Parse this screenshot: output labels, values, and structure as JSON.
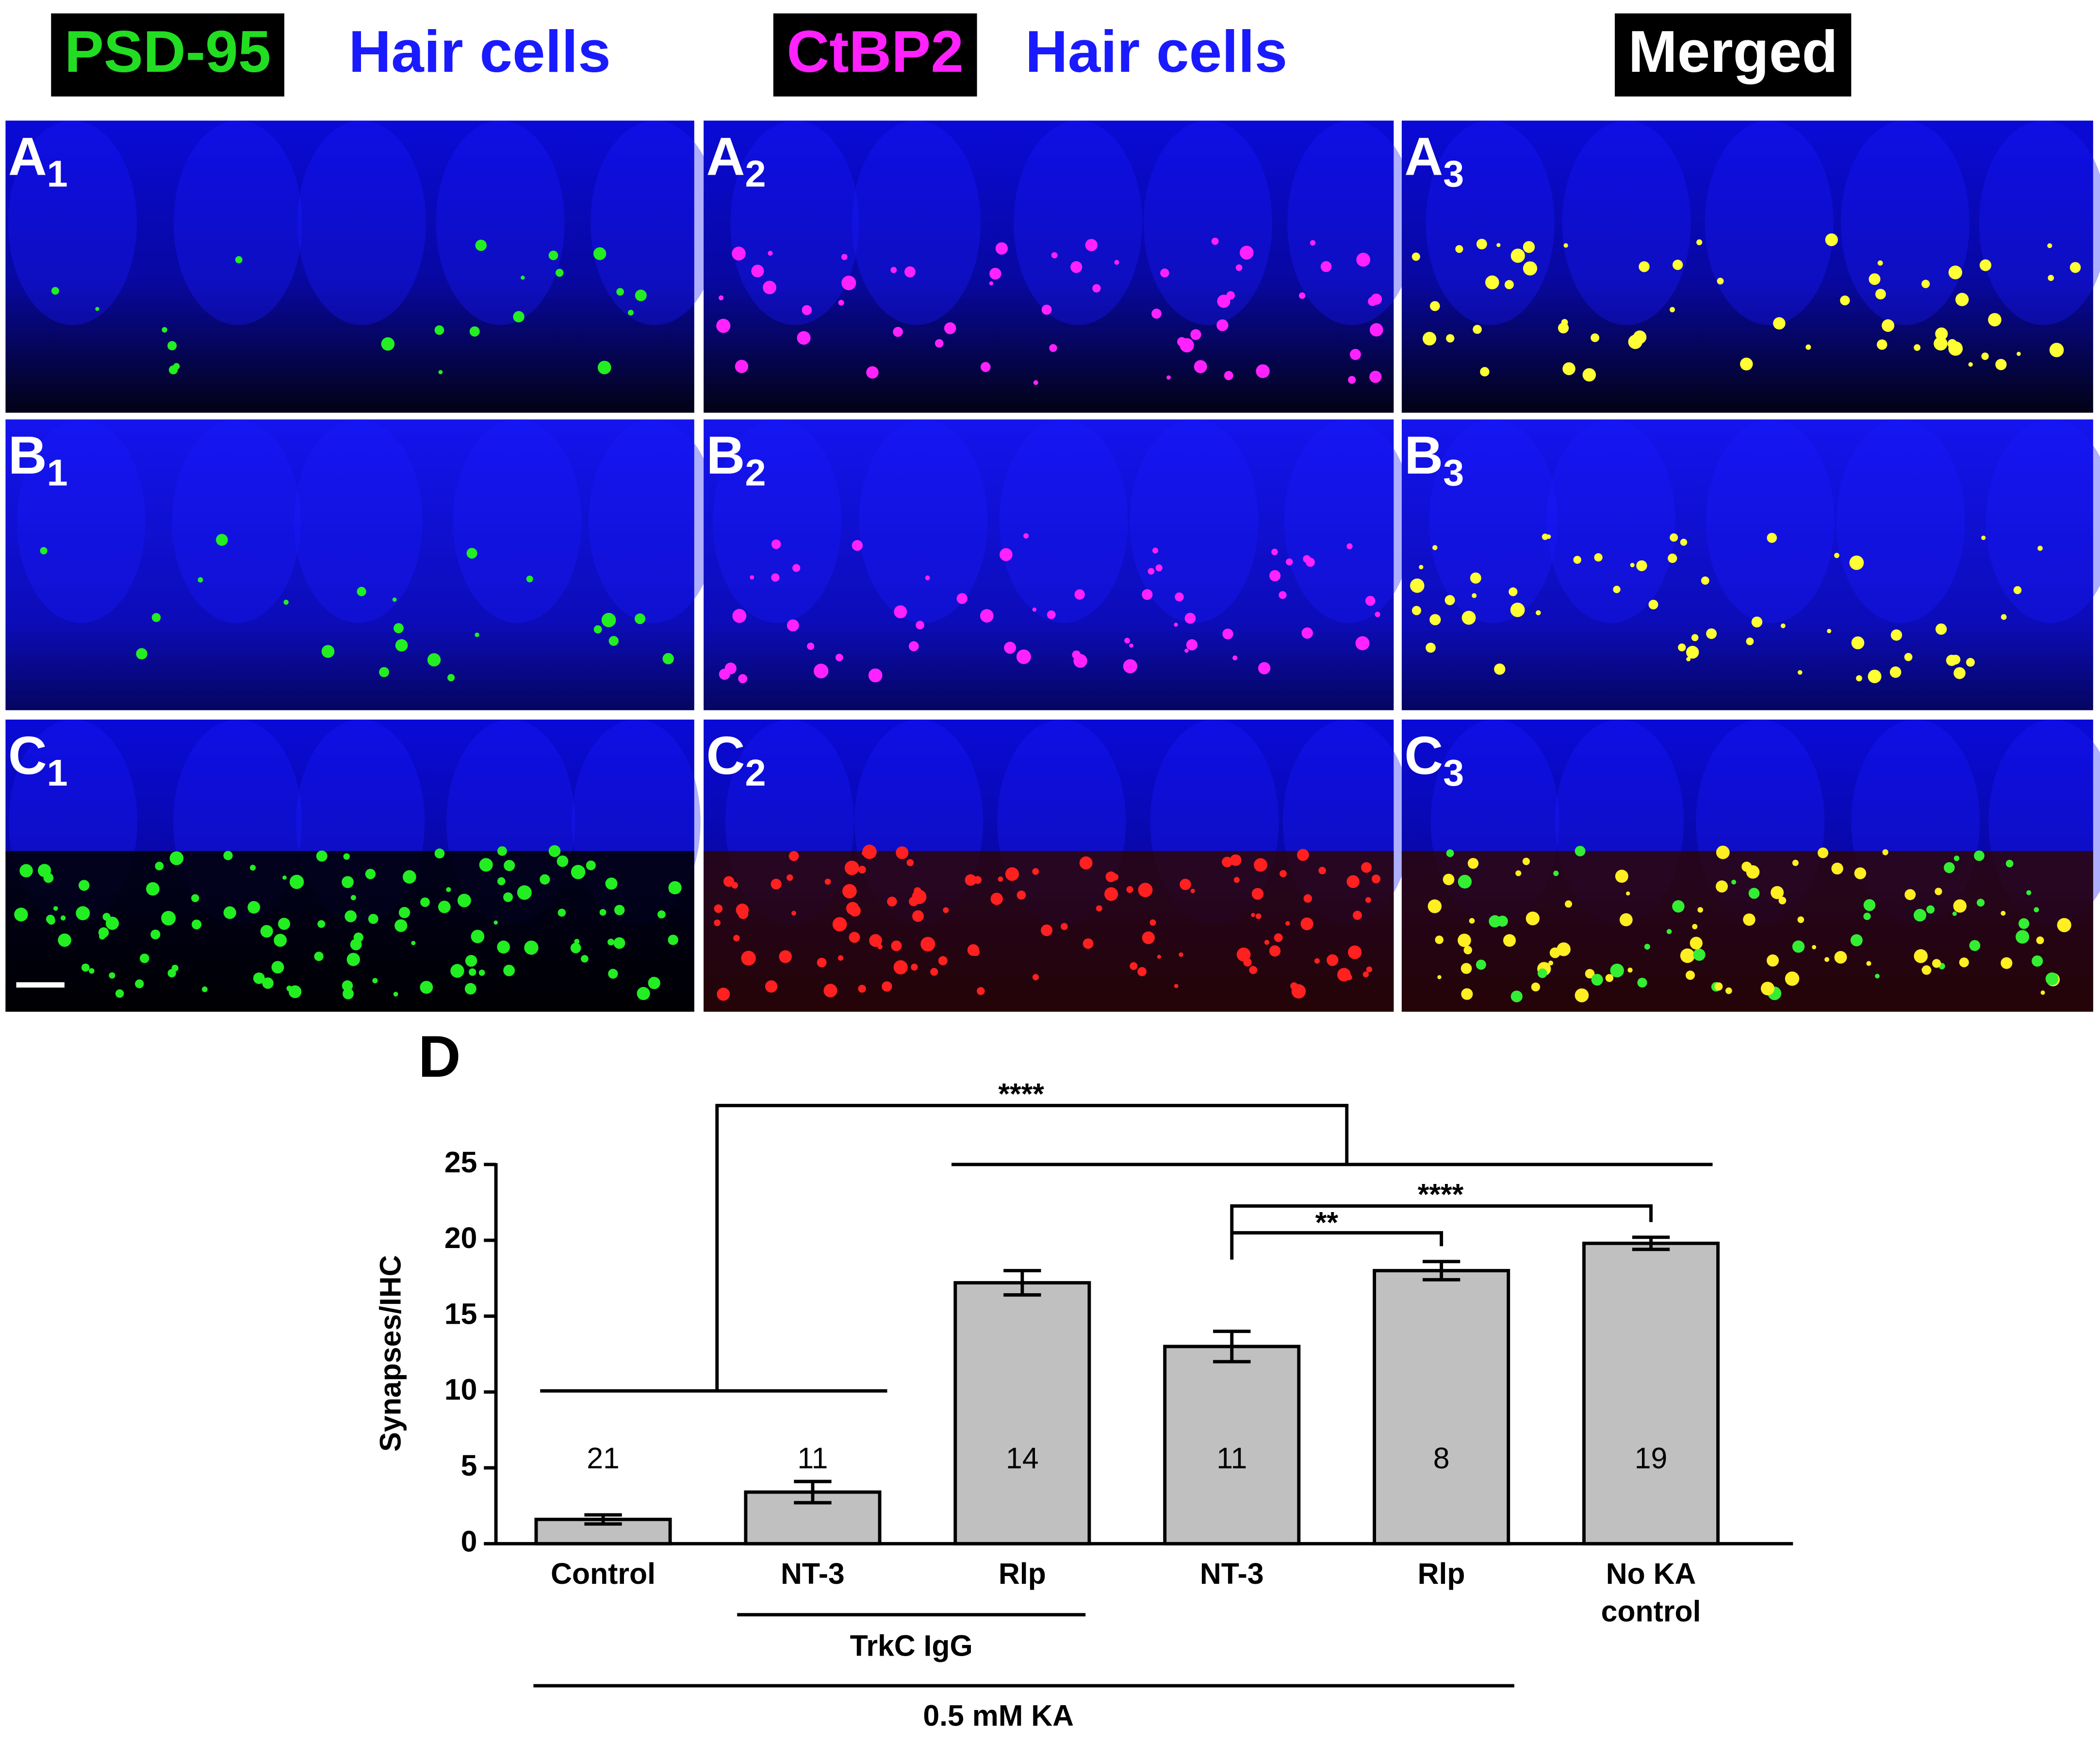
{
  "header": [
    {
      "text": "PSD-95",
      "color": "#22dd22",
      "boxed": true
    },
    {
      "text": "Hair cells",
      "color": "#1a1aff",
      "boxed": false
    },
    {
      "text": "CtBP2",
      "color": "#ff22ff",
      "boxed": true
    },
    {
      "text": "Hair cells",
      "color": "#1a1aff",
      "boxed": false
    },
    {
      "text": "Merged",
      "color": "#ffffff",
      "boxed": true
    }
  ],
  "panels": [
    {
      "letter": "A",
      "index": "1"
    },
    {
      "letter": "A",
      "index": "2"
    },
    {
      "letter": "A",
      "index": "3"
    },
    {
      "letter": "B",
      "index": "1"
    },
    {
      "letter": "B",
      "index": "2"
    },
    {
      "letter": "B",
      "index": "3"
    },
    {
      "letter": "C",
      "index": "1"
    },
    {
      "letter": "C",
      "index": "2"
    },
    {
      "letter": "C",
      "index": "3"
    }
  ],
  "chart_data": {
    "type": "bar",
    "panel_label": "D",
    "ylabel": "Synapses/IHC",
    "categories": [
      "Control",
      "NT-3",
      "Rlp",
      "NT-3",
      "Rlp",
      "No KA\ncontrol"
    ],
    "values": [
      1.6,
      3.4,
      17.2,
      13.0,
      18.0,
      19.8
    ],
    "errors": [
      0.3,
      0.7,
      0.8,
      1.0,
      0.6,
      0.4
    ],
    "n": [
      21,
      11,
      14,
      11,
      8,
      19
    ],
    "color": "#c0c0c0",
    "ylim": [
      0,
      25
    ],
    "yticks": [
      0,
      5,
      10,
      15,
      20,
      25
    ],
    "significance": [
      "****",
      "****",
      "**"
    ],
    "group_labels": [
      "TrkC IgG",
      "0.5 mM KA"
    ]
  }
}
